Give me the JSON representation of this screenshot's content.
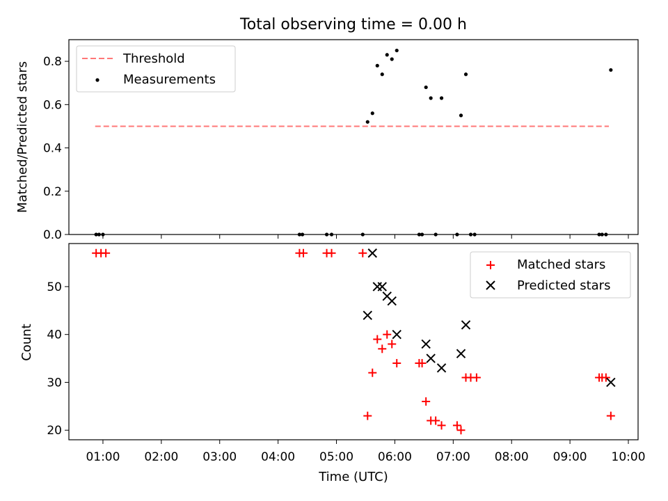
{
  "title": "Total observing time = 0.00 h",
  "xlabel": "Time (UTC)",
  "x_ticks": [
    "01:00",
    "02:00",
    "03:00",
    "04:00",
    "05:00",
    "06:00",
    "07:00",
    "08:00",
    "09:00",
    "10:00"
  ],
  "colors": {
    "threshold": "#ff7777",
    "measurement": "#000000",
    "matched": "#ff0000",
    "predicted": "#000000"
  },
  "chart_data": [
    {
      "type": "scatter",
      "ylabel": "Matched/Predicted stars",
      "xlim": [
        "00:25",
        "10:10"
      ],
      "ylim": [
        0,
        0.9
      ],
      "y_ticks": [
        0.0,
        0.2,
        0.4,
        0.6,
        0.8
      ],
      "legend_position": "top-left",
      "threshold": {
        "name": "Threshold",
        "value": 0.5,
        "x_range": [
          "00:52",
          "09:40"
        ]
      },
      "series": [
        {
          "name": "Measurements",
          "points": [
            [
              "00:53",
              0.0
            ],
            [
              "00:56",
              0.0
            ],
            [
              "01:00",
              0.0
            ],
            [
              "04:22",
              0.0
            ],
            [
              "04:25",
              0.0
            ],
            [
              "04:50",
              0.0
            ],
            [
              "04:55",
              0.0
            ],
            [
              "05:27",
              0.0
            ],
            [
              "05:32",
              0.52
            ],
            [
              "05:37",
              0.56
            ],
            [
              "05:42",
              0.78
            ],
            [
              "05:47",
              0.74
            ],
            [
              "05:52",
              0.83
            ],
            [
              "05:57",
              0.81
            ],
            [
              "06:02",
              0.85
            ],
            [
              "06:25",
              0.0
            ],
            [
              "06:28",
              0.0
            ],
            [
              "06:32",
              0.68
            ],
            [
              "06:37",
              0.63
            ],
            [
              "06:42",
              0.0
            ],
            [
              "06:48",
              0.63
            ],
            [
              "07:04",
              0.0
            ],
            [
              "07:08",
              0.55
            ],
            [
              "07:13",
              0.74
            ],
            [
              "07:18",
              0.0
            ],
            [
              "07:22",
              0.0
            ],
            [
              "09:30",
              0.0
            ],
            [
              "09:33",
              0.0
            ],
            [
              "09:37",
              0.0
            ],
            [
              "09:42",
              0.76
            ]
          ]
        }
      ]
    },
    {
      "type": "scatter",
      "ylabel": "Count",
      "xlim": [
        "00:25",
        "10:10"
      ],
      "ylim": [
        18,
        59
      ],
      "y_ticks": [
        20,
        30,
        40,
        50
      ],
      "legend_position": "top-right",
      "series": [
        {
          "name": "Matched stars",
          "marker": "+",
          "points": [
            [
              "00:53",
              57
            ],
            [
              "00:58",
              57
            ],
            [
              "01:03",
              57
            ],
            [
              "04:22",
              57
            ],
            [
              "04:26",
              57
            ],
            [
              "04:50",
              57
            ],
            [
              "04:55",
              57
            ],
            [
              "05:27",
              57
            ],
            [
              "05:32",
              23
            ],
            [
              "05:37",
              32
            ],
            [
              "05:42",
              39
            ],
            [
              "05:47",
              37
            ],
            [
              "05:52",
              40
            ],
            [
              "05:57",
              38
            ],
            [
              "06:02",
              34
            ],
            [
              "06:25",
              34
            ],
            [
              "06:28",
              34
            ],
            [
              "06:32",
              26
            ],
            [
              "06:37",
              22
            ],
            [
              "06:42",
              22
            ],
            [
              "06:48",
              21
            ],
            [
              "07:04",
              21
            ],
            [
              "07:08",
              20
            ],
            [
              "07:13",
              31
            ],
            [
              "07:18",
              31
            ],
            [
              "07:24",
              31
            ],
            [
              "09:30",
              31
            ],
            [
              "09:33",
              31
            ],
            [
              "09:37",
              31
            ],
            [
              "09:42",
              23
            ]
          ]
        },
        {
          "name": "Predicted stars",
          "marker": "x",
          "points": [
            [
              "05:32",
              44
            ],
            [
              "05:37",
              57
            ],
            [
              "05:42",
              50
            ],
            [
              "05:47",
              50
            ],
            [
              "05:52",
              48
            ],
            [
              "05:57",
              47
            ],
            [
              "06:02",
              40
            ],
            [
              "06:32",
              38
            ],
            [
              "06:37",
              35
            ],
            [
              "06:48",
              33
            ],
            [
              "07:08",
              36
            ],
            [
              "07:13",
              42
            ],
            [
              "09:42",
              30
            ]
          ]
        }
      ]
    }
  ]
}
